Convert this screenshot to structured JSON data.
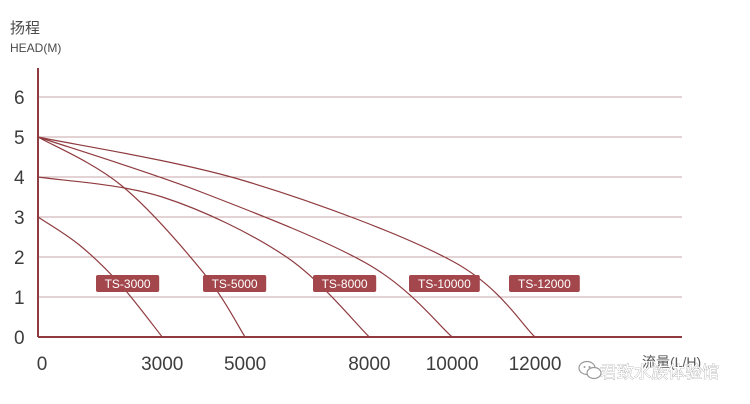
{
  "chart_data": {
    "type": "line",
    "title": "",
    "ylabel_cn": "扬程",
    "ylabel": "HEAD(M)",
    "xlabel": "流量(L/H)",
    "xlim": [
      0,
      12000
    ],
    "ylim": [
      0,
      6
    ],
    "y_ticks": [
      0,
      1,
      2,
      3,
      4,
      5,
      6
    ],
    "x_ticks": [
      "0",
      "3000",
      "5000",
      "8000",
      "10000",
      "12000"
    ],
    "x_tick_values": [
      0,
      3000,
      5000,
      8000,
      10000,
      12000
    ],
    "grid": "horizontal",
    "series": [
      {
        "name": "TS-3000",
        "points": [
          [
            0,
            3
          ],
          [
            1000,
            2.3
          ],
          [
            2000,
            1.3
          ],
          [
            3000,
            0
          ]
        ]
      },
      {
        "name": "TS-5000",
        "points": [
          [
            0,
            5
          ],
          [
            2000,
            3.8
          ],
          [
            4000,
            1.6
          ],
          [
            5000,
            0
          ]
        ]
      },
      {
        "name": "TS-8000",
        "points": [
          [
            0,
            4
          ],
          [
            3000,
            3.5
          ],
          [
            6000,
            2.0
          ],
          [
            8000,
            0
          ]
        ]
      },
      {
        "name": "TS-10000",
        "points": [
          [
            0,
            5
          ],
          [
            4000,
            3.6
          ],
          [
            8000,
            1.8
          ],
          [
            10000,
            0
          ]
        ]
      },
      {
        "name": "TS-12000",
        "points": [
          [
            0,
            5
          ],
          [
            5000,
            3.9
          ],
          [
            10000,
            1.9
          ],
          [
            12000,
            0
          ]
        ]
      }
    ],
    "colors": {
      "curve": "#8f3b3f",
      "axis": "#8f3b3f",
      "grid": "#c9a7a9",
      "badge": "#a3474c"
    }
  },
  "watermark": {
    "text": "君致水族体验馆",
    "icon": "wechat-icon"
  }
}
